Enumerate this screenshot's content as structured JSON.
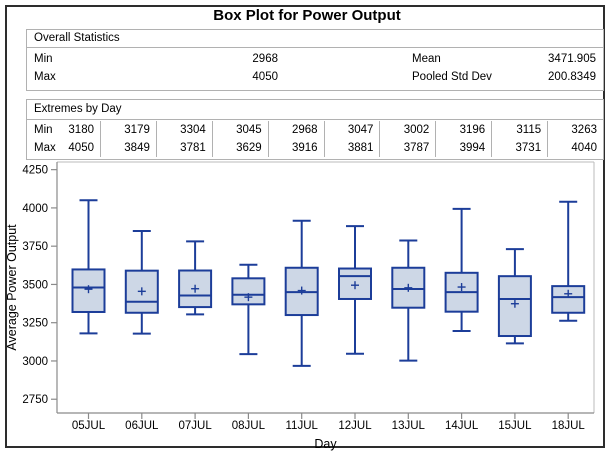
{
  "title": "Box Plot for Power Output",
  "overall_stats": {
    "header": "Overall Statistics",
    "rows": [
      {
        "label1": "Min",
        "value1": "2968",
        "label2": "Mean",
        "value2": "3471.905"
      },
      {
        "label1": "Max",
        "value1": "4050",
        "label2": "Pooled Std Dev",
        "value2": "200.8349"
      }
    ]
  },
  "extremes": {
    "header": "Extremes by Day",
    "min_label": "Min",
    "max_label": "Max",
    "min_values": [
      "3180",
      "3179",
      "3304",
      "3045",
      "2968",
      "3047",
      "3002",
      "3196",
      "3115",
      "3263"
    ],
    "max_values": [
      "4050",
      "3849",
      "3781",
      "3629",
      "3916",
      "3881",
      "3787",
      "3994",
      "3731",
      "4040"
    ]
  },
  "chart_data": {
    "type": "boxplot",
    "title": "",
    "xlabel": "Day",
    "ylabel": "Average Power Output",
    "categories": [
      "05JUL",
      "06JUL",
      "07JUL",
      "08JUL",
      "11JUL",
      "12JUL",
      "13JUL",
      "14JUL",
      "15JUL",
      "18JUL"
    ],
    "series": [
      {
        "min": 3180,
        "q1": 3320,
        "median": 3480,
        "mean": 3469,
        "q3": 3598,
        "max": 4050
      },
      {
        "min": 3179,
        "q1": 3315,
        "median": 3387,
        "mean": 3455,
        "q3": 3590,
        "max": 3849
      },
      {
        "min": 3304,
        "q1": 3352,
        "median": 3428,
        "mean": 3472,
        "q3": 3591,
        "max": 3781
      },
      {
        "min": 3045,
        "q1": 3370,
        "median": 3433,
        "mean": 3417,
        "q3": 3540,
        "max": 3629
      },
      {
        "min": 2968,
        "q1": 3300,
        "median": 3450,
        "mean": 3460,
        "q3": 3609,
        "max": 3916
      },
      {
        "min": 3047,
        "q1": 3405,
        "median": 3554,
        "mean": 3495,
        "q3": 3604,
        "max": 3881
      },
      {
        "min": 3002,
        "q1": 3348,
        "median": 3470,
        "mean": 3478,
        "q3": 3609,
        "max": 3787
      },
      {
        "min": 3196,
        "q1": 3322,
        "median": 3450,
        "mean": 3483,
        "q3": 3576,
        "max": 3994
      },
      {
        "min": 3115,
        "q1": 3163,
        "median": 3405,
        "mean": 3374,
        "q3": 3554,
        "max": 3731
      },
      {
        "min": 3263,
        "q1": 3315,
        "median": 3417,
        "mean": 3439,
        "q3": 3489,
        "max": 4040
      }
    ],
    "yticks": [
      2750,
      3000,
      3250,
      3500,
      3750,
      4000,
      4250
    ],
    "ylim": [
      2660,
      4300
    ],
    "grid": false,
    "legend": "none",
    "colors": {
      "box_fill": "#cdd7e6",
      "box_stroke": "#1c3d99",
      "axis": "#8a8a8a",
      "frame": "#bbbbbb",
      "text": "#000000"
    }
  }
}
